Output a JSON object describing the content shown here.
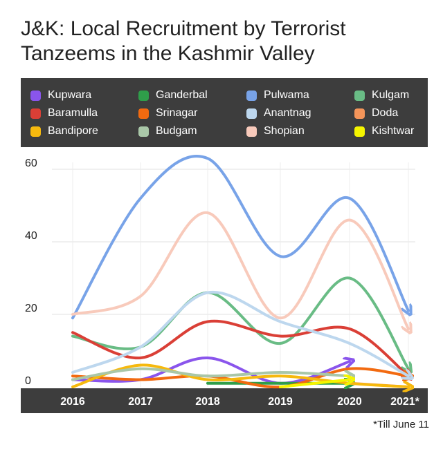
{
  "chart_data": {
    "type": "line",
    "title": "J&K: Local Recruitment by Terrorist Tanzeems in the Kashmir Valley",
    "categories": [
      "2016",
      "2017",
      "2018",
      "2019",
      "2020",
      "2021*"
    ],
    "ylim": [
      0,
      60
    ],
    "yticks": [
      "0",
      "20",
      "40",
      "60"
    ],
    "grid": true,
    "legend_position": "top",
    "footnote": "*Till June 11",
    "series": [
      {
        "name": "Kupwara",
        "color": "#8a55ec",
        "values": [
          2,
          2,
          8,
          1,
          7,
          null
        ]
      },
      {
        "name": "Ganderbal",
        "color": "#2f9e4a",
        "values": [
          null,
          null,
          1,
          1,
          1,
          null
        ]
      },
      {
        "name": "Pulwama",
        "color": "#78a3e8",
        "values": [
          19,
          52,
          63,
          36,
          52,
          21
        ]
      },
      {
        "name": "Kulgam",
        "color": "#69bc85",
        "values": [
          14,
          11,
          26,
          12,
          30,
          5
        ]
      },
      {
        "name": "Baramulla",
        "color": "#da3f36",
        "values": [
          15,
          8,
          18,
          14,
          16,
          3
        ]
      },
      {
        "name": "Srinagar",
        "color": "#f26a10",
        "values": [
          3,
          2,
          3,
          0,
          5,
          3
        ]
      },
      {
        "name": "Anantnag",
        "color": "#bdd7ee",
        "values": [
          4,
          11,
          26,
          18,
          12,
          3
        ]
      },
      {
        "name": "Doda",
        "color": "#f4955a",
        "values": [
          null,
          null,
          null,
          null,
          1,
          0
        ]
      },
      {
        "name": "Bandipore",
        "color": "#f6b90e",
        "values": [
          0,
          6,
          2,
          3,
          1,
          0
        ]
      },
      {
        "name": "Budgam",
        "color": "#a9c7a8",
        "values": [
          2,
          5,
          3,
          4,
          3,
          null
        ]
      },
      {
        "name": "Shopian",
        "color": "#f8cabb",
        "values": [
          20,
          25,
          48,
          19,
          46,
          16
        ]
      },
      {
        "name": "Kishtwar",
        "color": "#f5f500",
        "values": [
          null,
          null,
          null,
          0,
          2,
          null
        ]
      }
    ]
  }
}
